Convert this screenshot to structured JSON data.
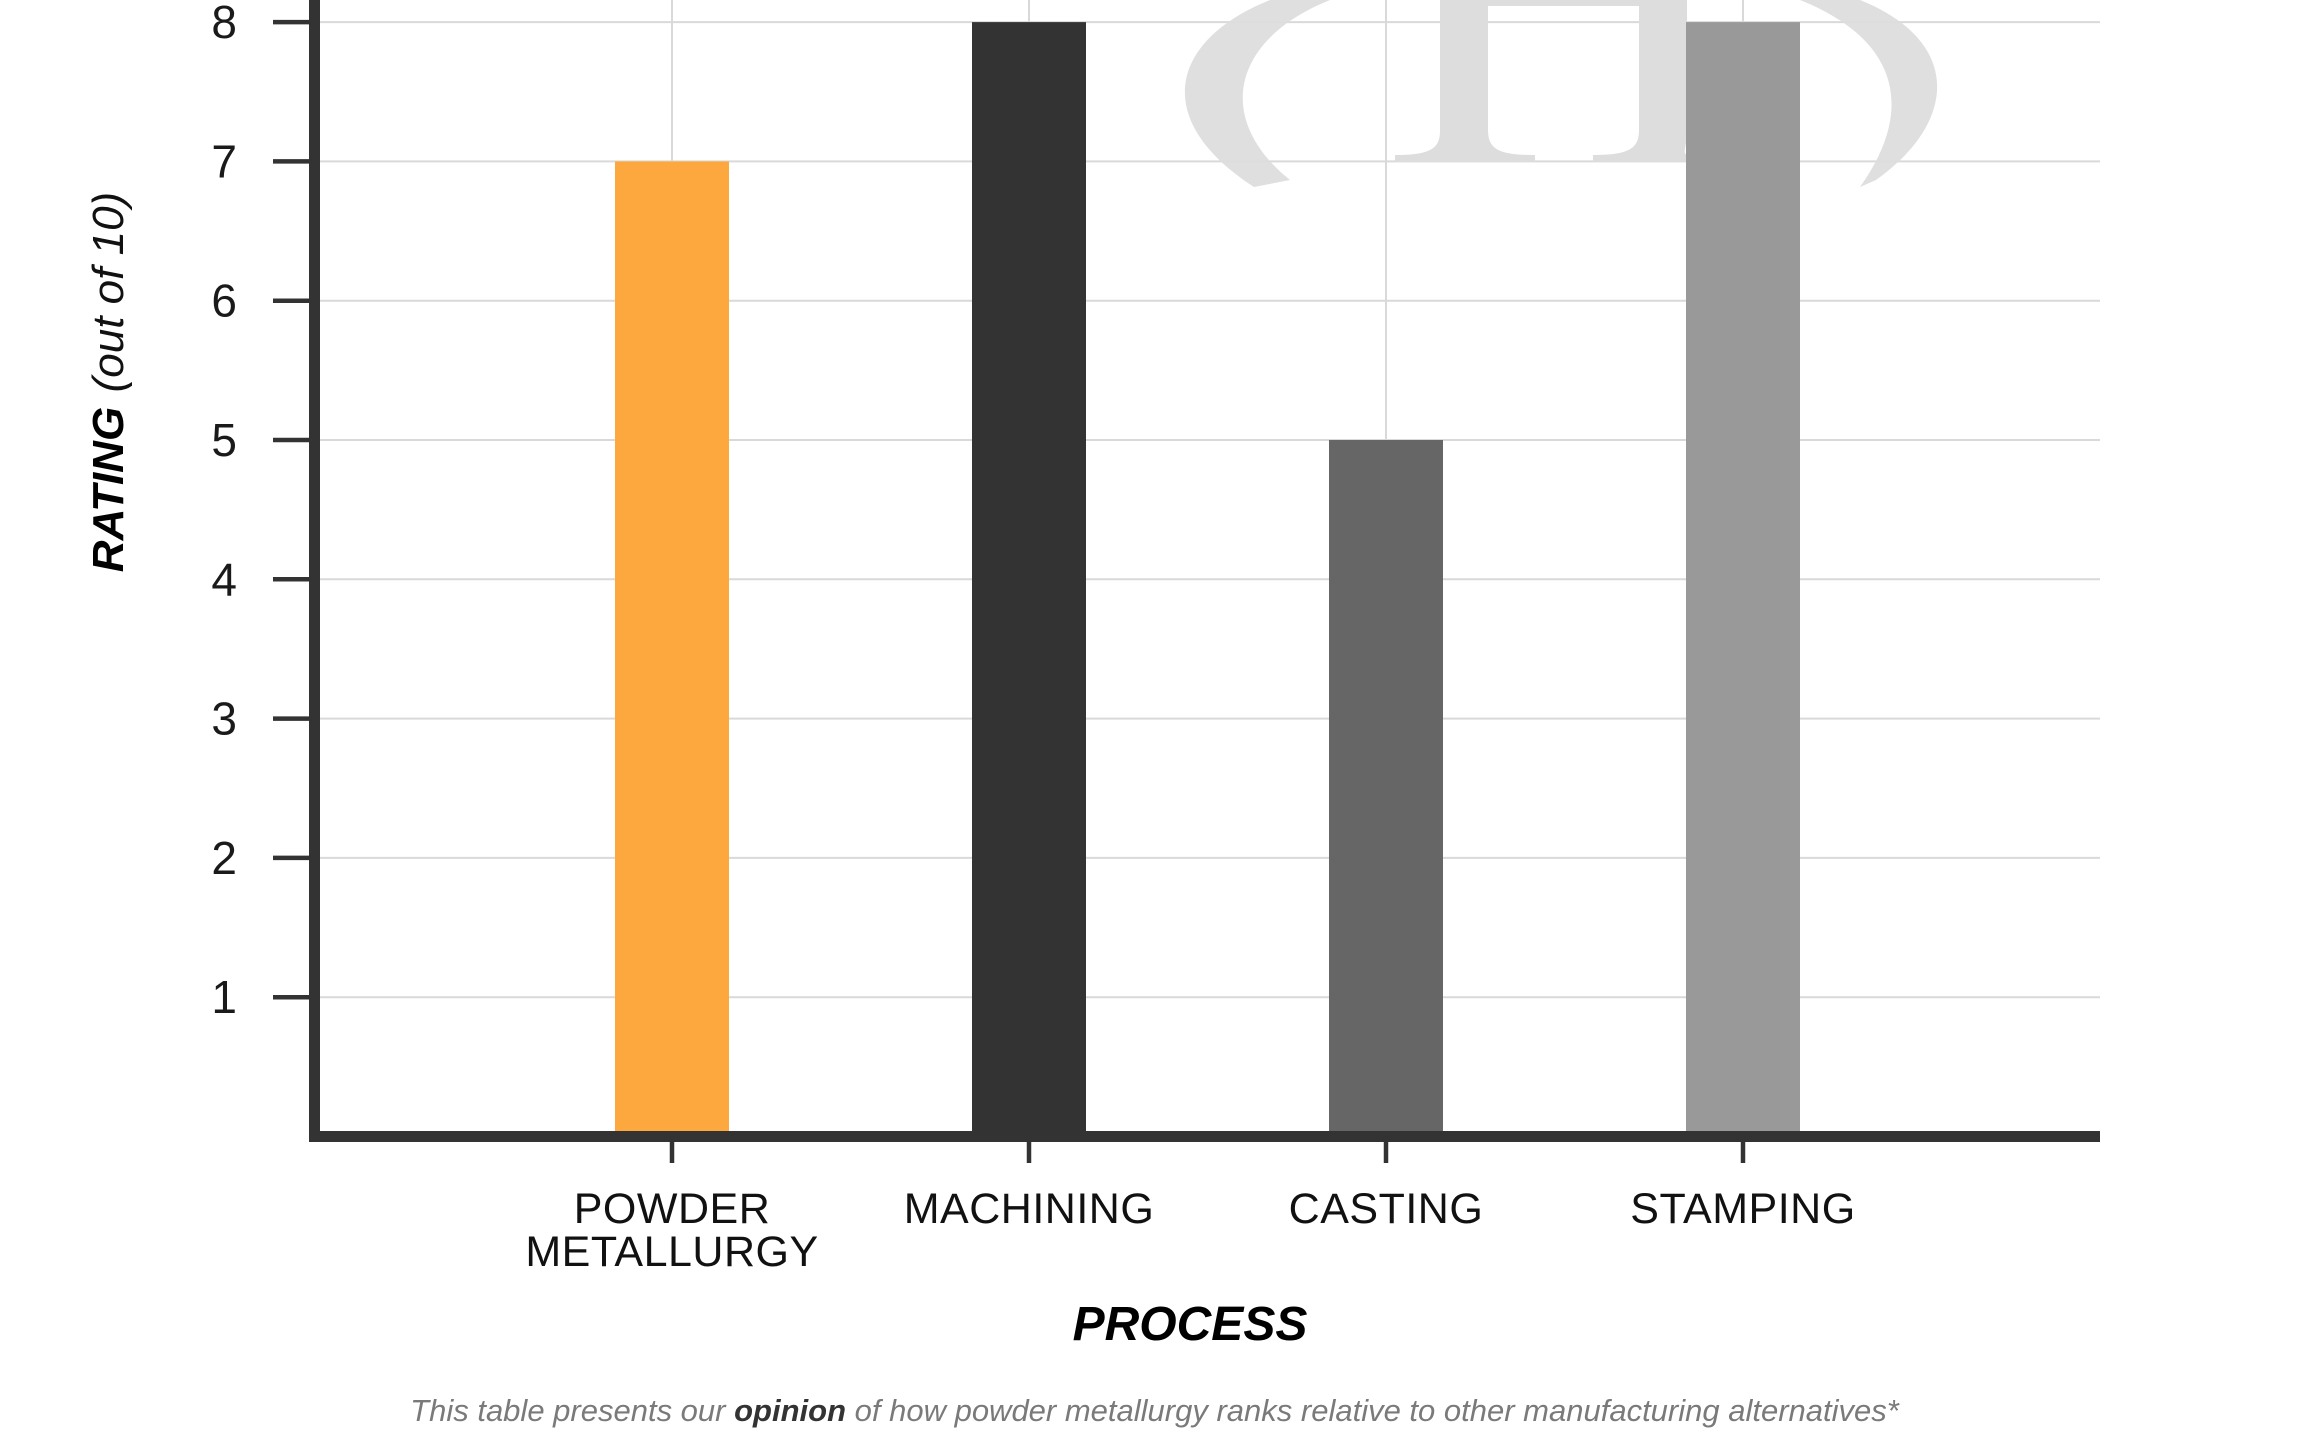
{
  "chart_data": {
    "type": "bar",
    "title": "",
    "xlabel": "PROCESS",
    "ylabel": "RATING (out of 10)",
    "ylabel_parts": {
      "main": "RATING",
      "sub": "(out of 10)"
    },
    "categories": [
      "POWDER METALLURGY",
      "MACHINING",
      "CASTING",
      "STAMPING"
    ],
    "category_lines": [
      [
        "POWDER",
        "METALLURGY"
      ],
      [
        "MACHINING"
      ],
      [
        "CASTING"
      ],
      [
        "STAMPING"
      ]
    ],
    "values": [
      7,
      8,
      5,
      8
    ],
    "colors": [
      "#FDA83F",
      "#333333",
      "#666666",
      "#999999"
    ],
    "yticks": [
      1,
      2,
      3,
      4,
      5,
      6,
      7,
      8
    ],
    "ylim": [
      0,
      8
    ],
    "grid": true,
    "legend": null
  },
  "footnote": {
    "before": "This table presents our ",
    "bold": "opinion",
    "after": " of how powder metallurgy ranks relative to other manufacturing alternatives*"
  },
  "watermark": {
    "description": "partial light-gray logo (ellipse with serif letters) behind plot"
  }
}
